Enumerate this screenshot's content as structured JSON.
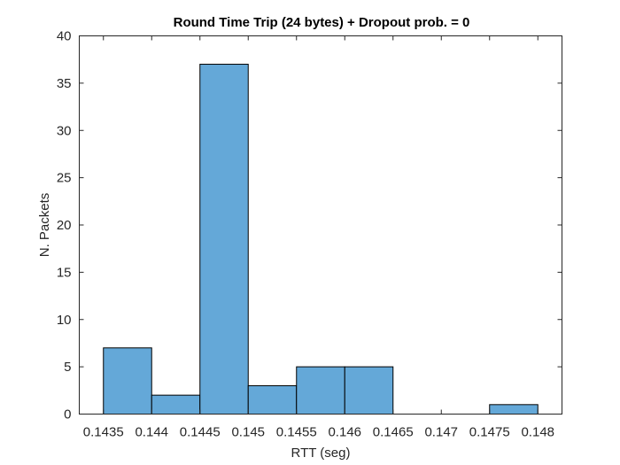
{
  "chart_data": {
    "type": "bar",
    "subtype": "histogram",
    "title": "Round Time Trip (24 bytes) + Dropout prob. = 0",
    "xlabel": "RTT (seg)",
    "ylabel": "N. Packets",
    "bin_edges": [
      0.1435,
      0.144,
      0.1445,
      0.145,
      0.1455,
      0.146,
      0.1465,
      0.147,
      0.1475,
      0.148
    ],
    "values": [
      7,
      2,
      37,
      3,
      5,
      5,
      0,
      0,
      1
    ],
    "xlim": [
      0.14325,
      0.14825
    ],
    "ylim": [
      0,
      40
    ],
    "xticks": [
      0.1435,
      0.144,
      0.1445,
      0.145,
      0.1455,
      0.146,
      0.1465,
      0.147,
      0.1475,
      0.148
    ],
    "xtick_labels": [
      "0.1435",
      "0.144",
      "0.1445",
      "0.145",
      "0.1455",
      "0.146",
      "0.1465",
      "0.147",
      "0.1475",
      "0.148"
    ],
    "yticks": [
      0,
      5,
      10,
      15,
      20,
      25,
      30,
      35,
      40
    ],
    "grid": false,
    "legend": "none",
    "bar_color": "#64a8d8",
    "edge_color": "#000000"
  }
}
